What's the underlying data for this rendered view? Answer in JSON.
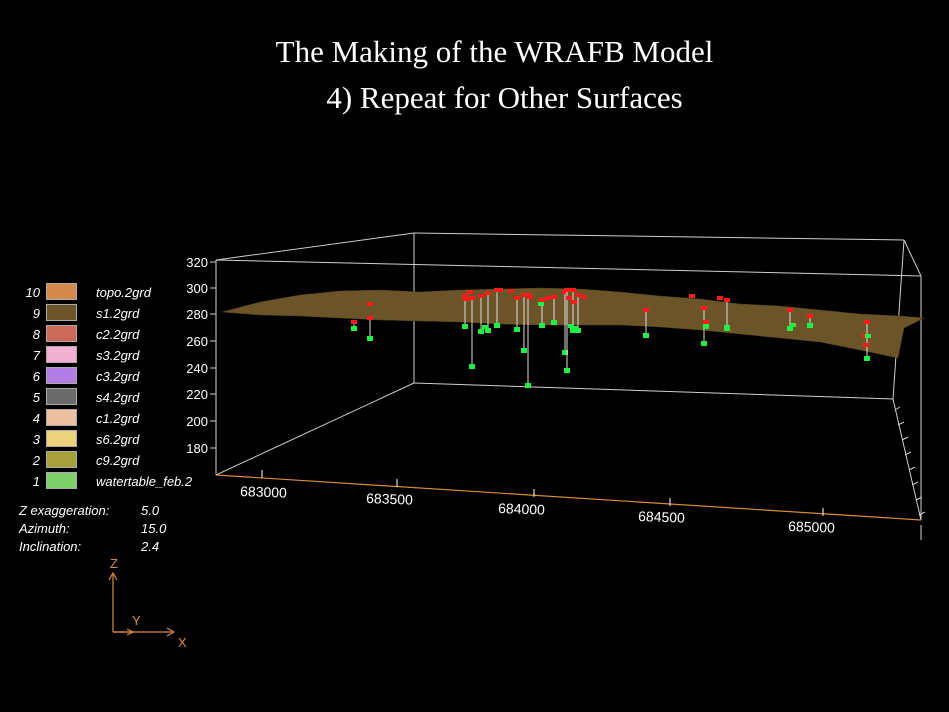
{
  "title": {
    "line1": "The Making of the WRAFB Model",
    "line2": "4) Repeat for Other Surfaces"
  },
  "legend": [
    {
      "num": "10",
      "name": "topo.2grd",
      "color": "#d48a4a"
    },
    {
      "num": "9",
      "name": "s1.2grd",
      "color": "#6b5528"
    },
    {
      "num": "8",
      "name": "c2.2grd",
      "color": "#cc6a5a"
    },
    {
      "num": "7",
      "name": "s3.2grd",
      "color": "#f2b0d2"
    },
    {
      "num": "6",
      "name": "c3.2grd",
      "color": "#b27ee6"
    },
    {
      "num": "5",
      "name": "s4.2grd",
      "color": "#6a6a6a"
    },
    {
      "num": "4",
      "name": "c1.2grd",
      "color": "#ecc0a0"
    },
    {
      "num": "3",
      "name": "s6.2grd",
      "color": "#ecd27a"
    },
    {
      "num": "2",
      "name": "c9.2grd",
      "color": "#a6a03a"
    },
    {
      "num": "1",
      "name": "watertable_feb.2",
      "color": "#7ed06a"
    }
  ],
  "view": {
    "z_exaggeration_label": "Z  exaggeration:",
    "z_exaggeration": "5.0",
    "azimuth_label": "Azimuth:",
    "azimuth": "15.0",
    "inclination_label": "Inclination:",
    "inclination": "2.4"
  },
  "axes": {
    "z_ticks": [
      "320",
      "300",
      "280",
      "260",
      "240",
      "220",
      "200",
      "180"
    ],
    "x_ticks": [
      "683000",
      "683500",
      "684000",
      "684500",
      "685000"
    ],
    "compass": {
      "z": "Z",
      "y": "Y",
      "x": "X"
    }
  },
  "colors": {
    "axis": "#d98c3c",
    "box": "#d0d0d0",
    "surface": "#6b5528",
    "well_top": "#ff1a1a",
    "well_bottom": "#22ee44"
  }
}
